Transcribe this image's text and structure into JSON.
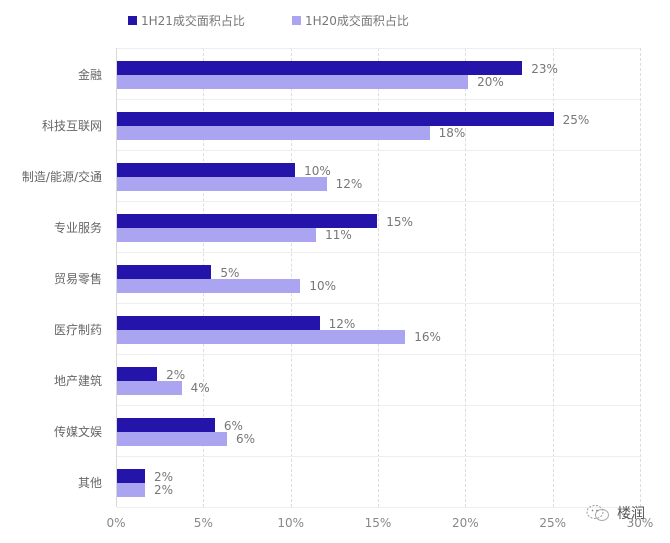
{
  "chart_data": {
    "type": "bar",
    "orientation": "horizontal",
    "title": "",
    "xlabel": "",
    "ylabel": "",
    "xlim": [
      0,
      30
    ],
    "x_ticks": [
      "0%",
      "5%",
      "10%",
      "15%",
      "20%",
      "25%",
      "30%"
    ],
    "grid": "vertical dashed",
    "legend_position": "top",
    "categories": [
      "金融",
      "科技互联网",
      "制造/能源/交通",
      "专业服务",
      "贸易零售",
      "医疗制药",
      "地产建筑",
      "传媒文娱",
      "其他"
    ],
    "series": [
      {
        "name": "1H21成交面积占比",
        "color": "#2414aa",
        "values": [
          23,
          25,
          10,
          15,
          5,
          12,
          2,
          6,
          2
        ],
        "bar_values": [
          23.2,
          25.0,
          10.2,
          14.9,
          5.4,
          11.6,
          2.3,
          5.6,
          1.6
        ]
      },
      {
        "name": "1H20成交面积占比",
        "color": "#aba4f0",
        "values": [
          20,
          18,
          12,
          11,
          10,
          16,
          4,
          6,
          2
        ],
        "bar_values": [
          20.1,
          17.9,
          12.0,
          11.4,
          10.5,
          16.5,
          3.7,
          6.3,
          1.6
        ]
      }
    ],
    "data_labels": {
      "1H21": [
        "23%",
        "25%",
        "10%",
        "15%",
        "5%",
        "12%",
        "2%",
        "6%",
        "2%"
      ],
      "1H20": [
        "20%",
        "18%",
        "12%",
        "11%",
        "10%",
        "16%",
        "4%",
        "6%",
        "2%"
      ]
    }
  },
  "legend": {
    "items": [
      {
        "label": "1H21成交面积占比",
        "color": "#2414aa"
      },
      {
        "label": "1H20成交面积占比",
        "color": "#aba4f0"
      }
    ]
  },
  "watermark": {
    "text": "楼润",
    "icon": "wechat-icon"
  }
}
